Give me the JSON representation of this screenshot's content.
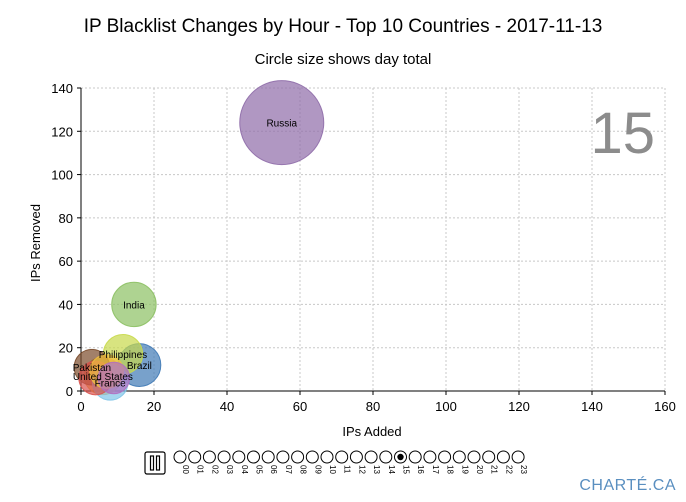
{
  "chart_data": {
    "type": "scatter",
    "title": "IP Blacklist Changes by Hour - Top 10 Countries - 2017-11-13",
    "subtitle": "Circle size shows day total",
    "xlabel": "IPs Added",
    "ylabel": "IPs Removed",
    "xlim": [
      0,
      160
    ],
    "ylim": [
      0,
      140
    ],
    "xticks": [
      "0",
      "20",
      "40",
      "60",
      "80",
      "100",
      "120",
      "140",
      "160"
    ],
    "yticks": [
      "0",
      "20",
      "40",
      "60",
      "80",
      "100",
      "120",
      "140"
    ],
    "grid": true,
    "current_hour": "15",
    "points": [
      {
        "name": "Russia",
        "x": 55,
        "y": 124,
        "size": 100,
        "color": "#8e6ba8"
      },
      {
        "name": "India",
        "x": 14.5,
        "y": 40,
        "size": 28,
        "color": "#8cc063"
      },
      {
        "name": "Philippines",
        "x": 11.5,
        "y": 17,
        "size": 22,
        "color": "#c8d94a"
      },
      {
        "name": "Brazil",
        "x": 16,
        "y": 12,
        "size": 26,
        "color": "#3e79b5"
      },
      {
        "name": "Pakistan",
        "x": 3,
        "y": 11,
        "size": 18,
        "color": "#7a4a2a"
      },
      {
        "name": "United States",
        "x": 6,
        "y": 7,
        "size": 20,
        "color": "#e5a83a"
      },
      {
        "name": "France",
        "x": 8,
        "y": 4,
        "size": 18,
        "color": "#7fc4e8"
      },
      {
        "name": "",
        "x": 4,
        "y": 6,
        "size": 16,
        "color": "#d9534f"
      },
      {
        "name": "",
        "x": 7,
        "y": 9,
        "size": 16,
        "color": "#f0c040"
      },
      {
        "name": "",
        "x": 9,
        "y": 6,
        "size": 14,
        "color": "#b06fc0"
      }
    ]
  },
  "controls": {
    "pause_icon": "pause-icon",
    "hours": [
      "00",
      "01",
      "02",
      "03",
      "04",
      "05",
      "06",
      "07",
      "08",
      "09",
      "10",
      "11",
      "12",
      "13",
      "14",
      "15",
      "16",
      "17",
      "18",
      "19",
      "20",
      "21",
      "22",
      "23"
    ],
    "selected_hour": "15"
  },
  "brand": "CHARTÉ.CA"
}
